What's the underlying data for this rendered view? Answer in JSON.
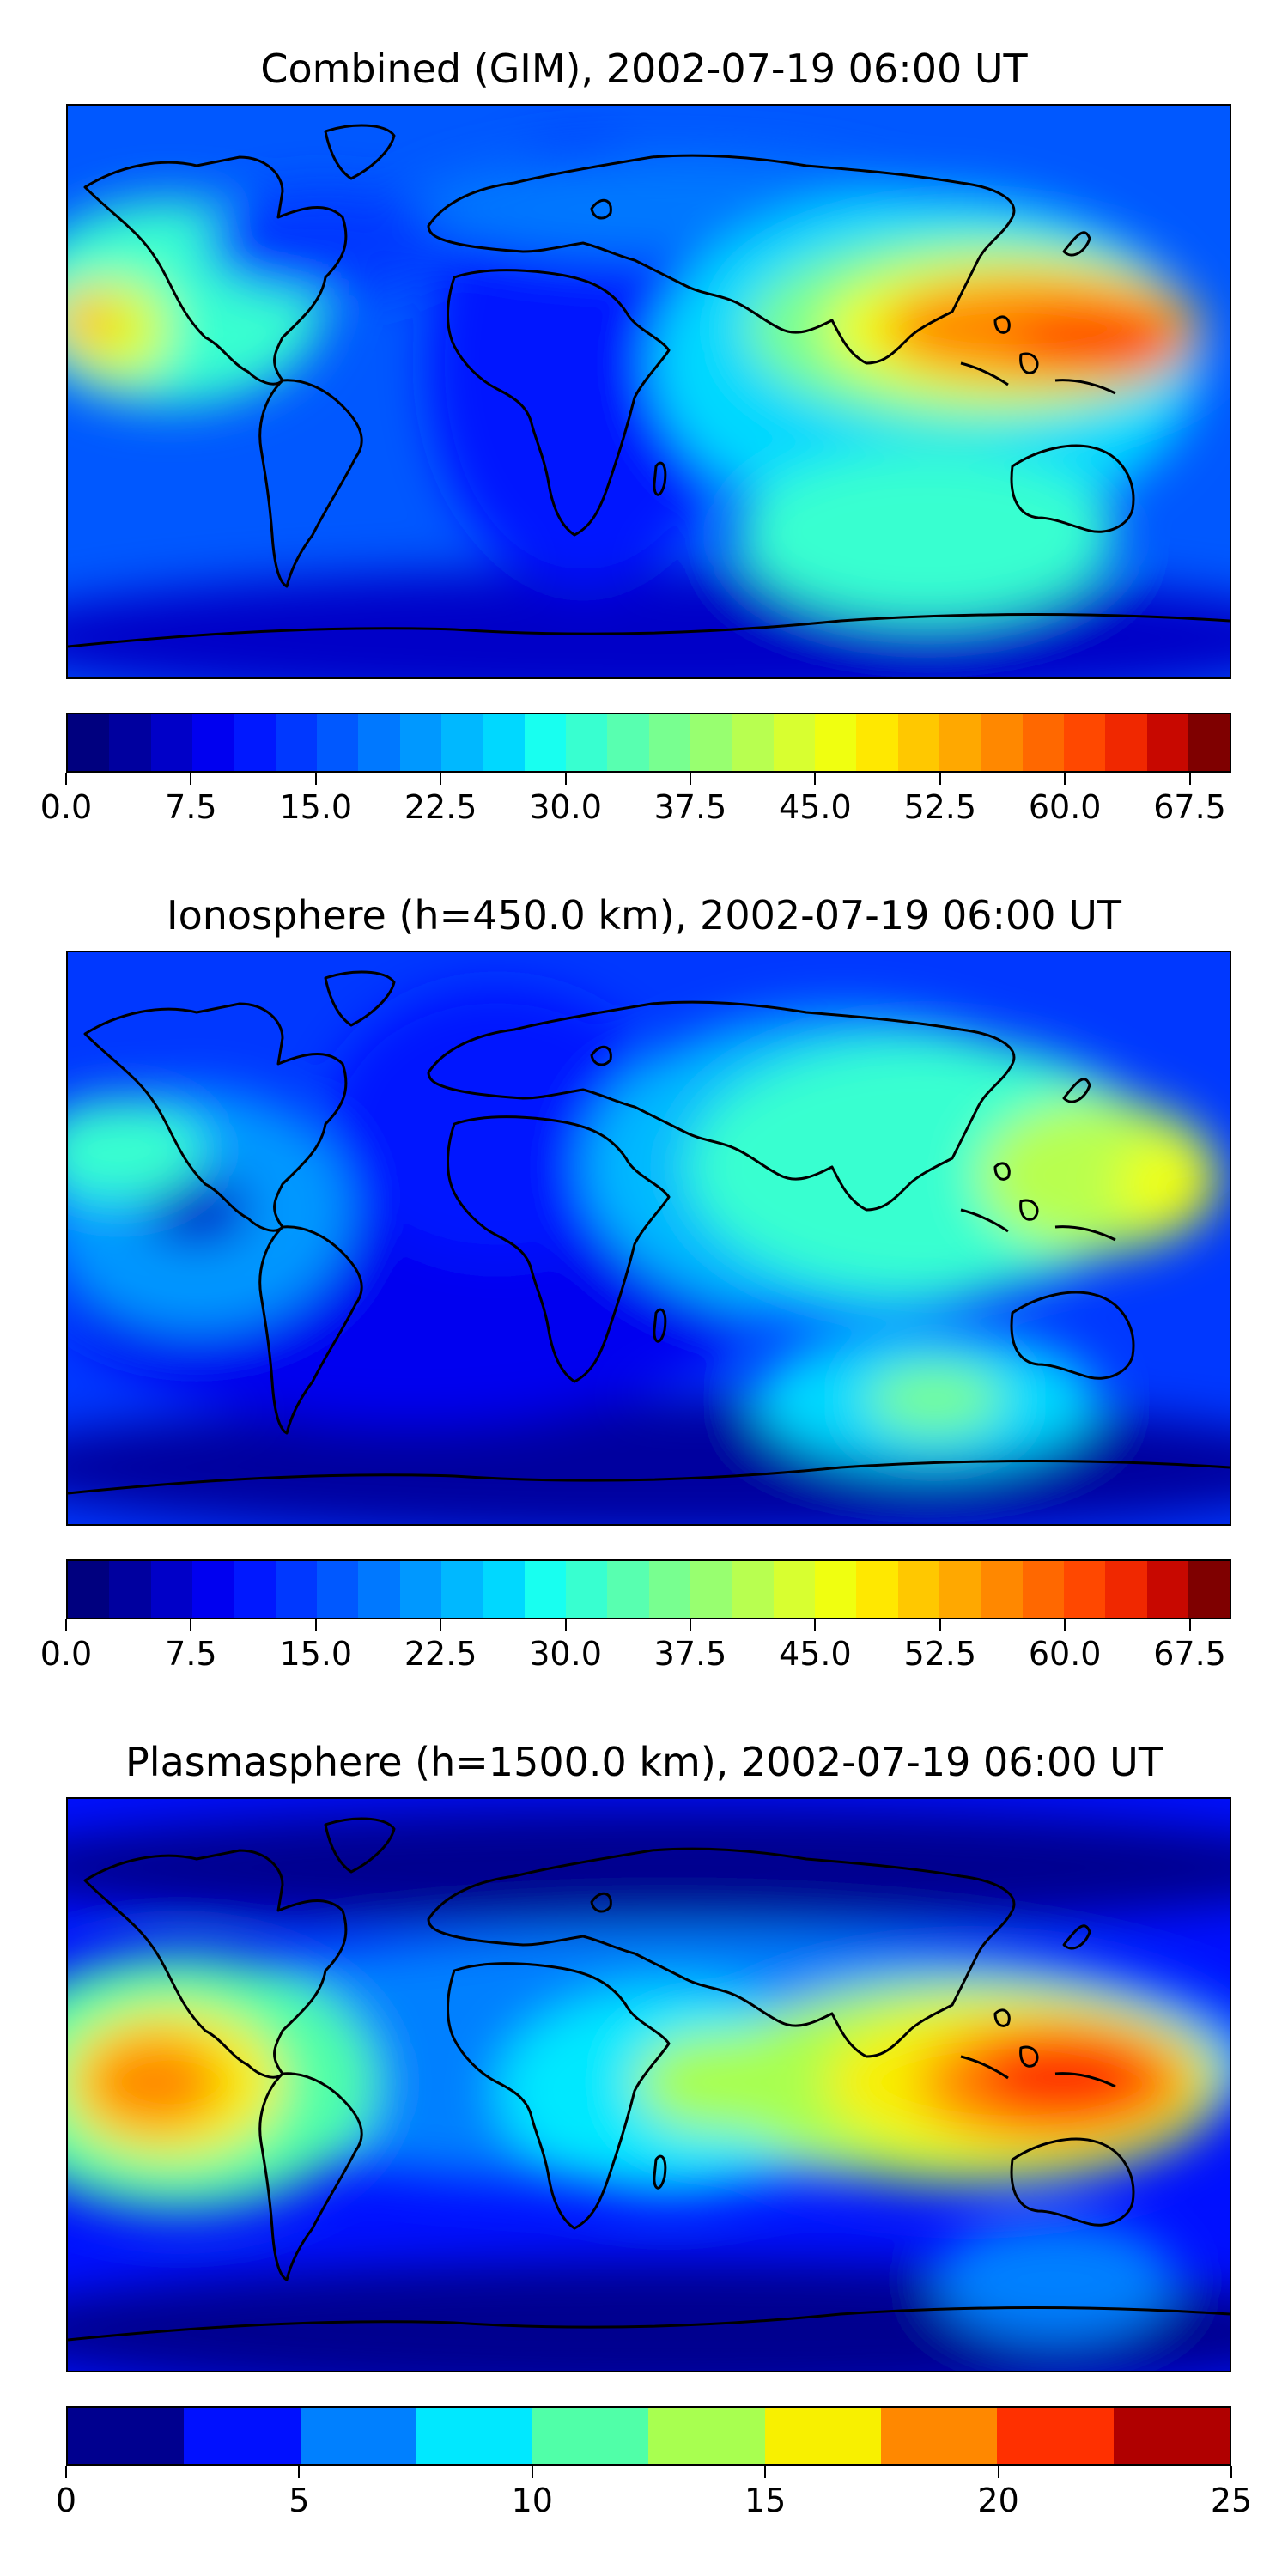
{
  "panels": [
    {
      "title": "Combined (GIM), 2002-07-19 06:00 UT",
      "colorbar": {
        "min": 0,
        "max": 70,
        "step": 2.5,
        "tick_labels": [
          "0.0",
          "7.5",
          "15.0",
          "22.5",
          "30.0",
          "37.5",
          "45.0",
          "52.5",
          "60.0",
          "67.5"
        ],
        "tick_values": [
          0,
          7.5,
          15,
          22.5,
          30,
          37.5,
          45,
          52.5,
          60,
          67.5
        ]
      }
    },
    {
      "title": "Ionosphere  (h=450.0 km), 2002-07-19 06:00 UT",
      "colorbar": {
        "min": 0,
        "max": 70,
        "step": 2.5,
        "tick_labels": [
          "0.0",
          "7.5",
          "15.0",
          "22.5",
          "30.0",
          "37.5",
          "45.0",
          "52.5",
          "60.0",
          "67.5"
        ],
        "tick_values": [
          0,
          7.5,
          15,
          22.5,
          30,
          37.5,
          45,
          52.5,
          60,
          67.5
        ]
      }
    },
    {
      "title": "Plasmasphere (h=1500.0 km), 2002-07-19 06:00 UT",
      "colorbar": {
        "min": 0,
        "max": 25,
        "step": 2.5,
        "tick_labels": [
          "0",
          "5",
          "10",
          "15",
          "20",
          "25"
        ],
        "tick_values": [
          0,
          5,
          10,
          15,
          20,
          25
        ]
      }
    }
  ],
  "colors": {
    "jet28": [
      "#00007f",
      "#00009f",
      "#0000c8",
      "#0000f0",
      "#0018ff",
      "#0038ff",
      "#0058ff",
      "#0078ff",
      "#0098ff",
      "#00b8ff",
      "#00d8ff",
      "#18fff0",
      "#38ffd0",
      "#58ffb0",
      "#78ff90",
      "#98ff70",
      "#b8ff50",
      "#d8ff30",
      "#f0ff10",
      "#ffe800",
      "#ffc800",
      "#ffa800",
      "#ff8800",
      "#ff6800",
      "#ff4800",
      "#f02800",
      "#c80800",
      "#7f0000"
    ],
    "jet10": [
      "#00008f",
      "#0010ff",
      "#0080ff",
      "#00e8ff",
      "#50ffa8",
      "#a8ff50",
      "#f8f000",
      "#ff8800",
      "#ff3000",
      "#b00000"
    ]
  }
}
